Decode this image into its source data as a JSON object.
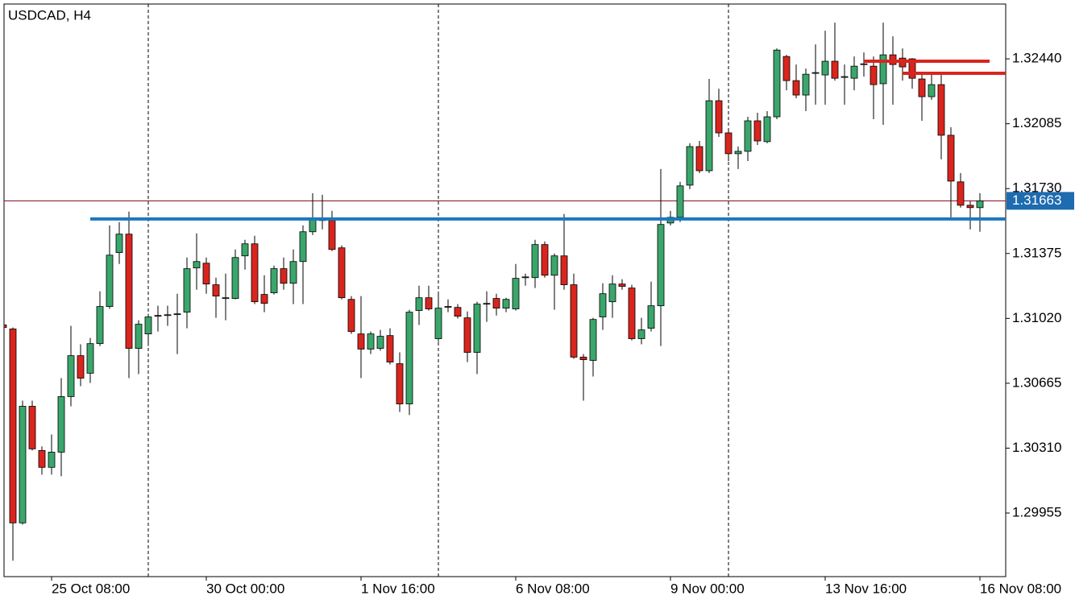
{
  "chart_data": {
    "type": "candlestick",
    "title": "USDCAD, H4",
    "categories": [
      null,
      null,
      null,
      null,
      null,
      "25 Oct 08:00",
      null,
      null,
      null,
      null,
      null,
      null,
      null,
      null,
      null,
      null,
      null,
      null,
      null,
      null,
      null,
      "30 Oct 00:00",
      null,
      null,
      null,
      null,
      null,
      null,
      null,
      null,
      null,
      null,
      null,
      null,
      null,
      null,
      null,
      "1 Nov 16:00",
      null,
      null,
      null,
      null,
      null,
      null,
      null,
      null,
      null,
      null,
      null,
      null,
      null,
      null,
      null,
      "6 Nov 08:00",
      null,
      null,
      null,
      null,
      null,
      null,
      null,
      null,
      null,
      null,
      null,
      null,
      null,
      null,
      null,
      "9 Nov 00:00",
      null,
      null,
      null,
      null,
      null,
      null,
      null,
      null,
      null,
      null,
      null,
      null,
      null,
      null,
      null,
      "13 Nov 16:00",
      null,
      null,
      null,
      null,
      null,
      null,
      null,
      null,
      null,
      null,
      null,
      null,
      null,
      null,
      null,
      "16 Nov 08:00"
    ],
    "open": [
      1.30984,
      1.30962,
      1.29901,
      1.30539,
      1.30297,
      1.30205,
      1.30288,
      1.30592,
      1.30816,
      1.3072,
      1.30882,
      1.31085,
      1.3138,
      1.31481,
      1.30856,
      1.30935,
      1.31036,
      1.31036,
      1.31041,
      1.31054,
      1.31296,
      1.31322,
      1.31204,
      1.31133,
      1.31129,
      1.31362,
      1.31428,
      1.31151,
      1.3116,
      1.31292,
      1.31212,
      1.31331,
      1.31494,
      1.3156,
      1.31556,
      1.31406,
      1.31124,
      1.30935,
      1.30852,
      1.30856,
      1.30926,
      1.30772,
      1.30552,
      1.31063,
      1.31133,
      1.30909,
      1.31085,
      1.3108,
      1.31023,
      1.30834,
      1.31098,
      1.31129,
      1.31076,
      1.31072,
      1.31243,
      1.31243,
      1.31424,
      1.31256,
      1.31362,
      1.31204,
      1.30808,
      1.3079,
      1.31028,
      1.31111,
      1.31208,
      1.31186,
      1.30909,
      1.30966,
      1.31089,
      1.31542,
      1.31573,
      1.31749,
      1.3196,
      1.31828,
      1.32211,
      1.32035,
      1.31921,
      1.31934,
      1.32101,
      1.31987,
      1.32123,
      1.32453,
      1.32321,
      1.32242,
      1.32361,
      1.32352,
      1.32427,
      1.32339,
      1.32334,
      1.32409,
      1.324,
      1.32304,
      1.32462,
      1.32444,
      1.3244,
      1.3233,
      1.32233,
      1.32299,
      1.32022,
      1.31767,
      1.31639,
      1.31626
    ],
    "high": [
      1.30988,
      1.3097,
      1.3057,
      1.3057,
      1.30319,
      1.30385,
      1.30693,
      1.30979,
      1.30878,
      1.30913,
      1.31168,
      1.31529,
      1.31547,
      1.31604,
      1.3101,
      1.31045,
      1.31089,
      1.31089,
      1.31155,
      1.31353,
      1.31485,
      1.31353,
      1.31243,
      1.31265,
      1.31397,
      1.3145,
      1.31472,
      1.31256,
      1.31309,
      1.31353,
      1.31397,
      1.31529,
      1.31705,
      1.31696,
      1.31608,
      1.31419,
      1.31142,
      1.31142,
      1.30948,
      1.30957,
      1.30966,
      1.30834,
      1.31067,
      1.31199,
      1.31199,
      1.31155,
      1.31124,
      1.31098,
      1.31058,
      1.31111,
      1.31168,
      1.31155,
      1.31133,
      1.31318,
      1.31265,
      1.3145,
      1.31441,
      1.31375,
      1.31591,
      1.31265,
      1.30825,
      1.31023,
      1.31212,
      1.31256,
      1.31234,
      1.31204,
      1.31023,
      1.31221,
      1.31837,
      1.31608,
      1.31767,
      1.31978,
      1.31991,
      1.3233,
      1.32277,
      1.32057,
      1.3196,
      1.32123,
      1.32145,
      1.32154,
      1.32497,
      1.32462,
      1.32409,
      1.32387,
      1.32519,
      1.32594,
      1.32638,
      1.32409,
      1.32453,
      1.32475,
      1.32453,
      1.32638,
      1.32563,
      1.32497,
      1.32444,
      1.32356,
      1.32365,
      1.32356,
      1.32066,
      1.31815,
      1.31661,
      1.31705
    ],
    "low": [
      1.30966,
      1.29694,
      1.29892,
      1.30297,
      1.30165,
      1.30165,
      1.30156,
      1.30539,
      1.30649,
      1.30667,
      1.30869,
      1.31072,
      1.31318,
      1.30693,
      1.30715,
      1.30869,
      1.30948,
      1.30979,
      1.30825,
      1.30966,
      1.31177,
      1.31155,
      1.31023,
      1.3101,
      1.31124,
      1.31287,
      1.31098,
      1.31054,
      1.31151,
      1.31177,
      1.31098,
      1.31098,
      1.31476,
      1.31507,
      1.31388,
      1.31124,
      1.30935,
      1.30693,
      1.30825,
      1.30843,
      1.30768,
      1.30508,
      1.30491,
      1.30984,
      1.31063,
      1.30891,
      1.31054,
      1.31019,
      1.30781,
      1.30715,
      1.31001,
      1.31036,
      1.31054,
      1.31063,
      1.31199,
      1.31186,
      1.31243,
      1.31067,
      1.31177,
      1.30799,
      1.3057,
      1.30702,
      1.30957,
      1.31023,
      1.31177,
      1.309,
      1.30878,
      1.30948,
      1.30869,
      1.31529,
      1.31547,
      1.31727,
      1.31815,
      1.31815,
      1.32013,
      1.31881,
      1.31837,
      1.31881,
      1.31969,
      1.31978,
      1.3211,
      1.32268,
      1.32224,
      1.32154,
      1.32189,
      1.32189,
      1.32321,
      1.32189,
      1.32268,
      1.32343,
      1.3211,
      1.32079,
      1.32189,
      1.32321,
      1.32277,
      1.32101,
      1.32216,
      1.3189,
      1.31573,
      1.31626,
      1.31507,
      1.31494
    ],
    "close": [
      1.3097,
      1.29901,
      1.30539,
      1.30306,
      1.30205,
      1.30288,
      1.30592,
      1.30816,
      1.30693,
      1.30882,
      1.31085,
      1.31366,
      1.31481,
      1.30856,
      1.30988,
      1.31028,
      1.31032,
      1.3104,
      1.31045,
      1.31292,
      1.31331,
      1.31208,
      1.31142,
      1.31133,
      1.31353,
      1.31428,
      1.31111,
      1.31102,
      1.31292,
      1.31212,
      1.31331,
      1.31494,
      1.3156,
      1.31556,
      1.31397,
      1.31133,
      1.30948,
      1.30852,
      1.30935,
      1.30922,
      1.30781,
      1.30552,
      1.31054,
      1.31133,
      1.31072,
      1.31076,
      1.31081,
      1.31032,
      1.30834,
      1.31098,
      1.31102,
      1.31076,
      1.31124,
      1.31239,
      1.31247,
      1.31424,
      1.31256,
      1.31362,
      1.31204,
      1.30808,
      1.30794,
      1.31014,
      1.31155,
      1.31208,
      1.31195,
      1.30909,
      1.30957,
      1.31089,
      1.31534,
      1.31573,
      1.31745,
      1.3196,
      1.31828,
      1.32211,
      1.32035,
      1.31921,
      1.31934,
      1.32101,
      1.31991,
      1.32123,
      1.32488,
      1.32321,
      1.32242,
      1.32356,
      1.32365,
      1.32427,
      1.32334,
      1.32343,
      1.324,
      1.32413,
      1.32299,
      1.32462,
      1.32409,
      1.32396,
      1.32334,
      1.32233,
      1.32299,
      1.32022,
      1.31771,
      1.31639,
      1.31626,
      1.31663
    ],
    "up_color": "#3aa66b",
    "down_color": "#d9251d",
    "ylim": [
      1.29607,
      1.3274
    ],
    "yticks": [
      {
        "value": 1.3244,
        "label": "1.32440"
      },
      1.32085,
      {
        "value": 1.3173,
        "label": "1.31730"
      },
      1.31375,
      {
        "value": 1.3102,
        "label": "1.31020"
      },
      1.30665,
      {
        "value": 1.3031,
        "label": "1.30310"
      },
      1.29955
    ],
    "separators": [
      15,
      45,
      75
    ],
    "hlines": [
      {
        "value": 1.31564,
        "color": "#1a78c2",
        "start": 9
      },
      {
        "value": 1.32427,
        "color": "#d9251d",
        "start": 89,
        "end": 102
      },
      {
        "value": 1.32361,
        "color": "#d9251d",
        "start": 93
      }
    ],
    "bid": 1.31663,
    "bid_color": "#1e6bb0",
    "bid_line_color": "#8b2333"
  }
}
